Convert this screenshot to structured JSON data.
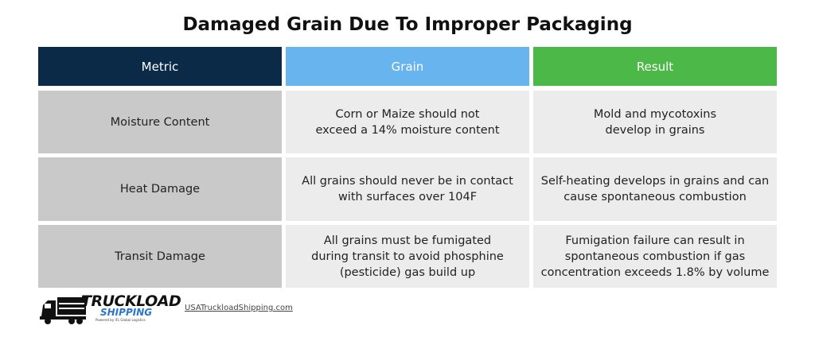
{
  "header": {
    "title": "Damaged Grain Due To Improper Packaging"
  },
  "table": {
    "columns": [
      "Metric",
      "Grain",
      "Result"
    ],
    "rows": [
      [
        [
          "Moisture Content"
        ],
        [
          "Corn or Maize should not",
          "exceed a 14% moisture content"
        ],
        [
          "Mold and mycotoxins",
          "develop in grains"
        ]
      ],
      [
        [
          "Heat Damage"
        ],
        [
          "All grains should never be in contact",
          "with surfaces over 104F"
        ],
        [
          "Self-heating develops in grains and can",
          "cause spontaneous combustion"
        ]
      ],
      [
        [
          "Transit Damage"
        ],
        [
          "All grains must be fumigated",
          "during transit to avoid phosphine",
          "(pesticide) gas build up"
        ],
        [
          "Fumigation failure can result in",
          "spontaneous combustion if gas",
          "concentration exceeds 1.8% by volume"
        ]
      ]
    ]
  },
  "footer": {
    "logo": {
      "title": "TRUCKLOAD",
      "subtitle": "SHIPPING",
      "tagline": "Powered by IFL Global Logistics"
    },
    "url": "USATruckloadShipping.com"
  }
}
